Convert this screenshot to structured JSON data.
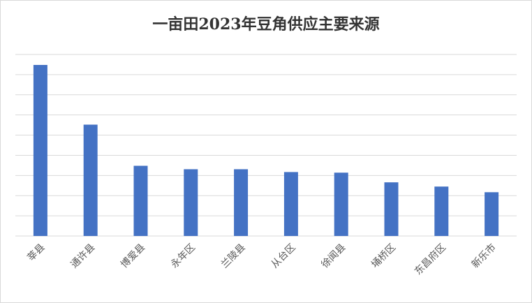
{
  "chart_data": {
    "type": "bar",
    "title": "一亩田2023年豆角供应主要来源",
    "categories": [
      "莘县",
      "通许县",
      "博爱县",
      "永年区",
      "兰陵县",
      "从台区",
      "徐闻县",
      "埇桥区",
      "东昌府区",
      "新乐市"
    ],
    "values": [
      8.48,
      5.52,
      3.48,
      3.31,
      3.31,
      3.17,
      3.14,
      2.66,
      2.45,
      2.17
    ],
    "color": "#4472c4",
    "ylim": [
      0,
      9
    ],
    "yticks": [
      0,
      1,
      2,
      3,
      4,
      5,
      6,
      7,
      8,
      9
    ],
    "grid": true
  }
}
